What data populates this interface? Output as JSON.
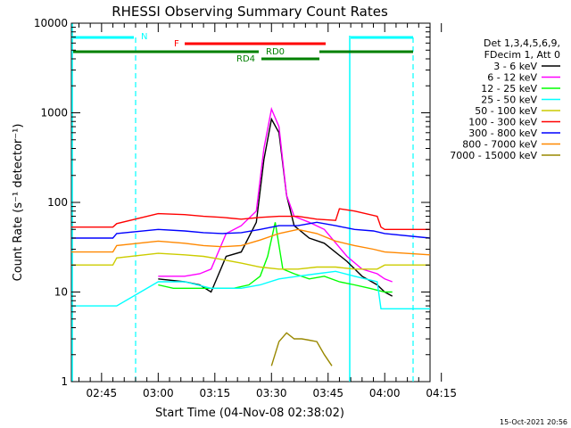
{
  "chart_data": {
    "type": "line",
    "title": "RHESSI Observing Summary Count Rates",
    "xlabel": "Start Time (04-Nov-08 02:38:02)",
    "ylabel": "Count Rate (s⁻¹ detector⁻¹)",
    "yscale": "log",
    "ylim": [
      1,
      10000
    ],
    "xlim_minutes": [
      -25,
      70
    ],
    "x_tick_labels": [
      "02:45",
      "03:00",
      "03:15",
      "03:30",
      "03:45",
      "04:00",
      "04:15"
    ],
    "x_tick_minutes": [
      -17,
      -2,
      13,
      28,
      43,
      58,
      73
    ],
    "y_tick_labels": [
      "1",
      "10",
      "100",
      "1000",
      "10000"
    ],
    "y_tick_values": [
      1,
      10,
      100,
      1000,
      10000
    ],
    "grid": false,
    "legend_position": "right",
    "legend_header": [
      "Det 1,3,4,5,6,9,",
      "FDecim 1, Att 0"
    ],
    "series": [
      {
        "name": "3 - 6 keV",
        "color": "#000000",
        "x": [
          -2,
          5,
          9,
          12,
          16,
          20,
          24,
          26,
          28,
          30,
          32,
          34,
          38,
          42,
          48,
          52,
          56,
          58,
          60
        ],
        "y": [
          14,
          13,
          12,
          10,
          25,
          28,
          60,
          300,
          850,
          600,
          120,
          55,
          40,
          35,
          22,
          15,
          12,
          10,
          9
        ]
      },
      {
        "name": "6 - 12 keV",
        "color": "#ff00ff",
        "x": [
          -2,
          5,
          9,
          12,
          16,
          20,
          24,
          26,
          28,
          30,
          32,
          34,
          38,
          42,
          48,
          52,
          56,
          58,
          60
        ],
        "y": [
          15,
          15,
          16,
          18,
          45,
          55,
          80,
          400,
          1100,
          700,
          120,
          70,
          60,
          50,
          25,
          18,
          16,
          14,
          13
        ]
      },
      {
        "name": "12 - 25 keV",
        "color": "#00ff00",
        "x": [
          -2,
          2,
          7,
          12,
          18,
          22,
          25,
          27,
          29,
          31,
          34,
          38,
          42,
          46,
          50,
          54,
          58,
          60
        ],
        "y": [
          12,
          11,
          11,
          11,
          11,
          12,
          15,
          25,
          60,
          18,
          16,
          14,
          15,
          13,
          12,
          11,
          10,
          10
        ]
      },
      {
        "name": "25 - 50 keV",
        "color": "#00ffff",
        "x": [
          -25,
          -14,
          -13,
          -2,
          5,
          12,
          20,
          25,
          30,
          35,
          40,
          45,
          50,
          56,
          57,
          58,
          70
        ],
        "y": [
          7,
          7,
          7,
          13,
          13,
          11,
          11,
          12,
          14,
          15,
          16,
          17,
          15,
          13,
          6.5,
          6.5,
          6.5
        ]
      },
      {
        "name": "50 - 100 keV",
        "color": "#cccc00",
        "x": [
          -25,
          -14,
          -13,
          -2,
          5,
          10,
          15,
          20,
          25,
          30,
          35,
          40,
          45,
          50,
          56,
          57,
          58,
          70
        ],
        "y": [
          20,
          20,
          24,
          27,
          26,
          25,
          23,
          21,
          19,
          18,
          18,
          19,
          19,
          18,
          18,
          19,
          20,
          20
        ]
      },
      {
        "name": "100 - 300 keV",
        "color": "#ff0000",
        "x": [
          -25,
          -14,
          -13,
          -2,
          5,
          10,
          15,
          20,
          25,
          30,
          35,
          40,
          45,
          46,
          50,
          56,
          57,
          58,
          70
        ],
        "y": [
          53,
          53,
          58,
          75,
          73,
          70,
          68,
          65,
          68,
          70,
          70,
          65,
          63,
          85,
          80,
          70,
          53,
          50,
          50
        ]
      },
      {
        "name": "300 - 800 keV",
        "color": "#0000ff",
        "x": [
          -25,
          -14,
          -13,
          -2,
          5,
          10,
          15,
          20,
          25,
          30,
          35,
          40,
          45,
          50,
          55,
          58,
          70
        ],
        "y": [
          40,
          40,
          45,
          50,
          48,
          46,
          45,
          46,
          50,
          55,
          55,
          60,
          55,
          50,
          48,
          45,
          40
        ]
      },
      {
        "name": "800 - 7000 keV",
        "color": "#ff8800",
        "x": [
          -25,
          -14,
          -13,
          -2,
          5,
          10,
          15,
          20,
          25,
          30,
          35,
          40,
          45,
          50,
          55,
          58,
          70
        ],
        "y": [
          28,
          28,
          33,
          37,
          35,
          33,
          32,
          33,
          38,
          45,
          50,
          45,
          37,
          33,
          30,
          28,
          26
        ]
      },
      {
        "name": "7000 - 15000 keV",
        "color": "#998800",
        "x": [
          28,
          30,
          32,
          34,
          36,
          38,
          40,
          42,
          44
        ],
        "y": [
          1.5,
          2.8,
          3.5,
          3.0,
          3.0,
          2.9,
          2.8,
          2.0,
          1.5
        ]
      }
    ],
    "annotations": [
      {
        "label": "N",
        "color": "#00ffff"
      },
      {
        "label": "F",
        "color": "#ff0000"
      },
      {
        "label": "RD0",
        "color": "#008000"
      },
      {
        "label": "RD4",
        "color": "#008000"
      }
    ],
    "footer": "15-Oct-2021 20:56"
  }
}
